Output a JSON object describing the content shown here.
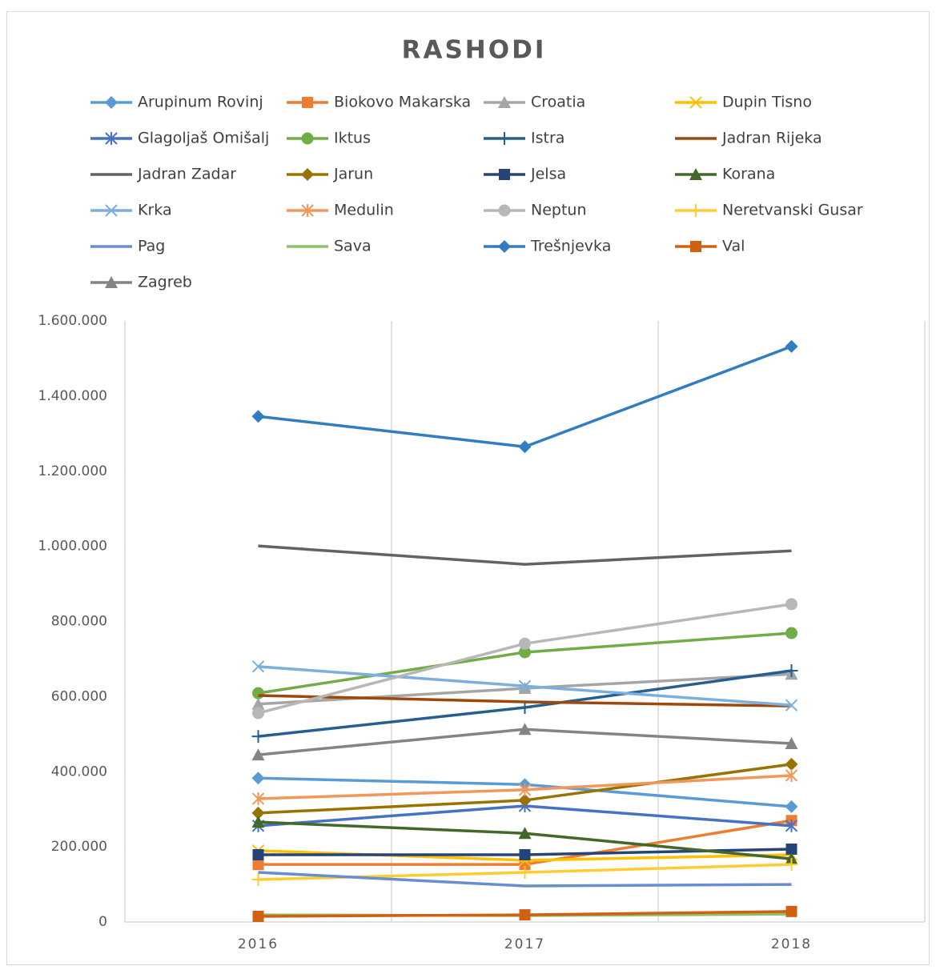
{
  "chart_data": {
    "type": "line",
    "title": "RASHODI",
    "categories": [
      "2016",
      "2017",
      "2018"
    ],
    "ylim": [
      0,
      1600000
    ],
    "yticks": [
      0,
      {
        "value": 200000,
        "label": "200.000"
      },
      {
        "value": 400000,
        "label": "400.000"
      },
      {
        "value": 600000,
        "label": "600.000"
      },
      {
        "value": 800000,
        "label": "800.000"
      },
      {
        "value": 1000000,
        "label": "1.000.000"
      },
      {
        "value": 1200000,
        "label": "1.200.000"
      },
      {
        "value": 1400000,
        "label": "1.400.000"
      },
      {
        "value": 1600000,
        "label": "1.600.000"
      }
    ],
    "legend": "top",
    "series": [
      {
        "name": "Arupinum Rovinj",
        "color": "#5b9bd5",
        "marker": "diamond",
        "values": [
          383000,
          366000,
          307000
        ]
      },
      {
        "name": "Biokovo Makarska",
        "color": "#ed7d31",
        "marker": "square",
        "values": [
          153000,
          153000,
          270000
        ]
      },
      {
        "name": "Croatia",
        "color": "#a5a5a5",
        "marker": "triangle",
        "values": [
          580000,
          622000,
          660000
        ]
      },
      {
        "name": "Dupin Tisno",
        "color": "#ffc000",
        "marker": "x",
        "values": [
          190000,
          164000,
          179000
        ]
      },
      {
        "name": "Glagoljaš Omišalj",
        "color": "#4472c4",
        "marker": "star",
        "values": [
          256000,
          309000,
          256000
        ]
      },
      {
        "name": "Iktus",
        "color": "#70ad47",
        "marker": "circle",
        "values": [
          609000,
          718000,
          769000
        ]
      },
      {
        "name": "Istra",
        "color": "#255e91",
        "marker": "plus",
        "values": [
          494000,
          571000,
          669000
        ]
      },
      {
        "name": "Jadran Rijeka",
        "color": "#9e480e",
        "marker": "dash",
        "values": [
          603000,
          586000,
          575000
        ]
      },
      {
        "name": "Jadran Zadar",
        "color": "#636363",
        "marker": "dash",
        "values": [
          1001000,
          952000,
          988000
        ]
      },
      {
        "name": "Jarun",
        "color": "#997300",
        "marker": "diamond",
        "values": [
          290000,
          324000,
          420000
        ]
      },
      {
        "name": "Jelsa",
        "color": "#264478",
        "marker": "square",
        "values": [
          179000,
          179000,
          194000
        ]
      },
      {
        "name": "Korana",
        "color": "#43682b",
        "marker": "triangle",
        "values": [
          266000,
          236000,
          168000
        ]
      },
      {
        "name": "Krka",
        "color": "#7cafdd",
        "marker": "x",
        "values": [
          680000,
          628000,
          577000
        ]
      },
      {
        "name": "Medulin",
        "color": "#f1975a",
        "marker": "star",
        "values": [
          328000,
          352000,
          390000
        ]
      },
      {
        "name": "Neptun",
        "color": "#b7b7b7",
        "marker": "circle",
        "values": [
          556000,
          741000,
          846000
        ]
      },
      {
        "name": "Neretvanski Gusar",
        "color": "#ffcd33",
        "marker": "plus",
        "values": [
          113000,
          132000,
          153000
        ]
      },
      {
        "name": "Pag",
        "color": "#698ed0",
        "marker": "dash",
        "values": [
          132000,
          96000,
          100000
        ]
      },
      {
        "name": "Sava",
        "color": "#8cc168",
        "marker": "dash",
        "values": [
          19000,
          17000,
          21000
        ]
      },
      {
        "name": "Trešnjevka",
        "color": "#327dc2",
        "marker": "diamond",
        "values": [
          1346000,
          1265000,
          1532000
        ]
      },
      {
        "name": "Val",
        "color": "#d26012",
        "marker": "square",
        "values": [
          15000,
          19000,
          28000
        ]
      },
      {
        "name": "Zagreb",
        "color": "#848484",
        "marker": "triangle",
        "values": [
          445000,
          513000,
          475000
        ]
      }
    ]
  }
}
